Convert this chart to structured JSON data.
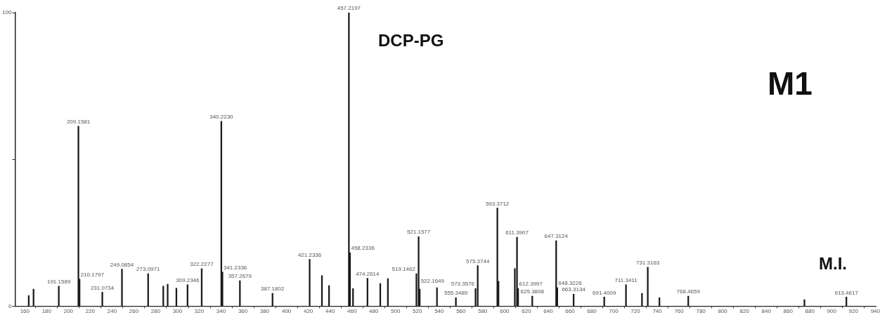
{
  "chart_data": {
    "type": "bar",
    "color": "#1a1a1a",
    "x": [
      163.6,
      168,
      191.1589,
      209.1581,
      210.1797,
      231.0734,
      249.0854,
      273.0971,
      287,
      291,
      299,
      309.2346,
      322.2277,
      340.223,
      341.2336,
      357.2679,
      387.1802,
      421.2336,
      432.5,
      439,
      457.2197,
      458.2336,
      461,
      474.2614,
      486,
      493,
      519.1462,
      521.1577,
      522.1649,
      538,
      555.3489,
      573.3576,
      575.3744,
      593.3712,
      594.4,
      609.4,
      611.3907,
      612.3997,
      625.3808,
      647.3124,
      648.3226,
      663.3134,
      691.4009,
      711.3411,
      726,
      731.3163,
      742,
      768.4659,
      875,
      913.4617
    ],
    "values": [
      3.6,
      5.8,
      6.8,
      61.3,
      9.2,
      4.8,
      12.6,
      11.1,
      6.8,
      7.5,
      6.1,
      7.3,
      12.8,
      63,
      11.6,
      8.7,
      4.4,
      16,
      10.4,
      7,
      100,
      18.2,
      6,
      9.5,
      7.7,
      9.4,
      11.1,
      23.7,
      5.8,
      6.3,
      2.9,
      6,
      13.8,
      33.4,
      8.5,
      12.8,
      23.5,
      6,
      3.4,
      22.3,
      6.3,
      4.1,
      3.1,
      7.3,
      4.4,
      13.3,
      2.9,
      3.4,
      2.2,
      3.1
    ],
    "xlim": [
      151,
      941
    ],
    "xticks": [
      160,
      180,
      200,
      220,
      240,
      260,
      280,
      300,
      320,
      340,
      360,
      380,
      400,
      420,
      440,
      460,
      480,
      500,
      520,
      540,
      560,
      580,
      600,
      620,
      640,
      660,
      680,
      700,
      720,
      740,
      760,
      780,
      800,
      820,
      840,
      860,
      880,
      900,
      920,
      940
    ],
    "ylim": [
      0,
      100
    ],
    "yticks": [
      0,
      {
        "value": 50,
        "label": null
      },
      100
    ],
    "grid": false,
    "legend": false,
    "annotations": [
      "DCP-PG",
      "M1",
      "M.I.",
      {
        "text": "191.1589",
        "x": 191.1589,
        "y": 6.8
      },
      {
        "text": "209.1581",
        "x": 209.1581,
        "y": 61.3
      },
      {
        "text": "210.1797",
        "x": 210.1797,
        "y": 9.2
      },
      {
        "text": "231.0734",
        "x": 231.0734,
        "y": 4.8
      },
      {
        "text": "249.0854",
        "x": 249.0854,
        "y": 12.6
      },
      {
        "text": "273.0971",
        "x": 273.0971,
        "y": 11.1
      },
      {
        "text": "309.2346",
        "x": 309.2346,
        "y": 7.3
      },
      {
        "text": "322.2277",
        "x": 322.2277,
        "y": 12.8
      },
      {
        "text": "340.2230",
        "x": 340.223,
        "y": 63
      },
      {
        "text": "341.2336",
        "x": 341.2336,
        "y": 11.6
      },
      {
        "text": "357.2679",
        "x": 357.2679,
        "y": 8.7
      },
      {
        "text": "387.1802",
        "x": 387.1802,
        "y": 4.4
      },
      {
        "text": "421.2336",
        "x": 421.2336,
        "y": 16
      },
      {
        "text": "457.2197",
        "x": 457.2197,
        "y": 100
      },
      {
        "text": "458.2336",
        "x": 458.2336,
        "y": 18.2
      },
      {
        "text": "474.2614",
        "x": 474.2614,
        "y": 9.5
      },
      {
        "text": "519.1462",
        "x": 519.1462,
        "y": 11.1
      },
      {
        "text": "521.1577",
        "x": 521.1577,
        "y": 23.7
      },
      {
        "text": "522.1649",
        "x": 522.1649,
        "y": 5.8
      },
      {
        "text": "555.3489",
        "x": 555.3489,
        "y": 2.9
      },
      {
        "text": "573.3576",
        "x": 573.3576,
        "y": 6
      },
      {
        "text": "575.3744",
        "x": 575.3744,
        "y": 13.8
      },
      {
        "text": "593.3712",
        "x": 593.3712,
        "y": 33.4
      },
      {
        "text": "611.3907",
        "x": 611.3907,
        "y": 23.5
      },
      {
        "text": "612.3997",
        "x": 612.3997,
        "y": 6
      },
      {
        "text": "625.3808",
        "x": 625.3808,
        "y": 3.4
      },
      {
        "text": "647.3124",
        "x": 647.3124,
        "y": 22.3
      },
      {
        "text": "648.3226",
        "x": 648.3226,
        "y": 6.3
      },
      {
        "text": "663.3134",
        "x": 663.3134,
        "y": 4.1
      },
      {
        "text": "691.4009",
        "x": 691.4009,
        "y": 3.1
      },
      {
        "text": "711.3411",
        "x": 711.3411,
        "y": 7.3
      },
      {
        "text": "731.3163",
        "x": 731.3163,
        "y": 13.3
      },
      {
        "text": "768.4659",
        "x": 768.4659,
        "y": 3.4
      },
      {
        "text": "913.4617",
        "x": 913.4617,
        "y": 3.1
      }
    ]
  }
}
